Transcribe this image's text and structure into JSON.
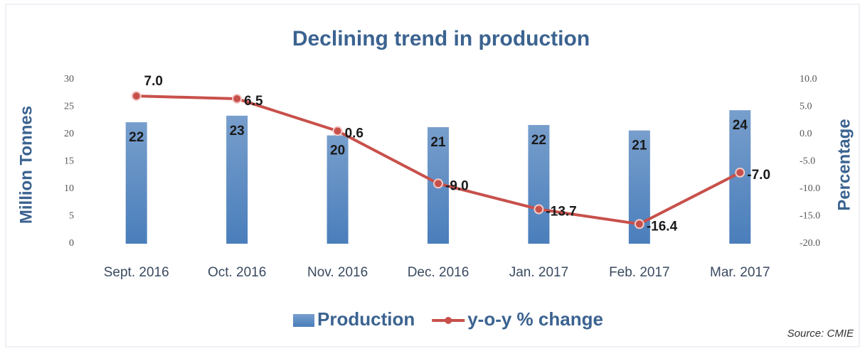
{
  "chart_data": {
    "type": "bar_line",
    "title": "Declining trend in production",
    "y_label": "Million Tonnes",
    "y2_label": "Percentage",
    "source": "Source: CMIE",
    "categories": [
      "Sept. 2016",
      "Oct. 2016",
      "Nov. 2016",
      "Dec. 2016",
      "Jan. 2017",
      "Feb. 2017",
      "Mar. 2017"
    ],
    "series": [
      {
        "name": "Production",
        "type": "bar",
        "color": "#4a7ebb",
        "values": [
          22.2,
          23.4,
          19.8,
          21.3,
          21.7,
          20.7,
          24.4
        ],
        "value_labels": [
          "22",
          "23",
          "20",
          "21",
          "22",
          "21",
          "24"
        ]
      },
      {
        "name": "y-o-y % change",
        "type": "line",
        "axis": "y2",
        "color": "#c8504b",
        "values": [
          7.0,
          6.5,
          0.6,
          -9.0,
          -13.7,
          -16.4,
          -7.0
        ],
        "value_labels": [
          "7.0",
          "6.5",
          "0.6",
          "-9.0",
          "-13.7",
          "-16.4",
          "-7.0"
        ]
      }
    ],
    "ylim": [
      0,
      30
    ],
    "yticks": [
      0,
      5,
      10,
      15,
      20,
      25,
      30
    ],
    "y2lim": [
      -20,
      10
    ],
    "y2ticks": [
      {
        "value": -20,
        "label": "-20.0"
      },
      {
        "value": -15,
        "label": "-15.0"
      },
      {
        "value": -10,
        "label": "-10.0"
      },
      {
        "value": -5,
        "label": "-5.0"
      },
      {
        "value": 0,
        "label": "0.0"
      },
      {
        "value": 5,
        "label": "5.0"
      },
      {
        "value": 10,
        "label": "10.0"
      }
    ],
    "grid": false,
    "legend": "bottom"
  }
}
